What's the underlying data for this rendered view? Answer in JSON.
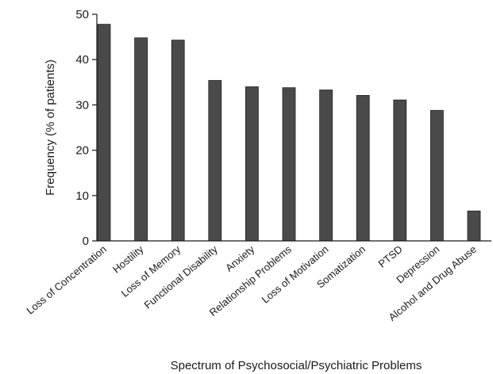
{
  "chart_data": {
    "type": "bar",
    "categories": [
      "Loss of Concentration",
      "Hostility",
      "Loss of Memory",
      "Functional Disability",
      "Anxiety",
      "Relationship Problems",
      "Loss of Motivation",
      "Somatization",
      "PTSD",
      "Depression",
      "Alcohol and Drug Abuse"
    ],
    "values": [
      47.8,
      44.8,
      44.3,
      35.4,
      34.0,
      33.8,
      33.3,
      32.1,
      31.1,
      28.8,
      6.6
    ],
    "xlabel": "Spectrum of Psychosocial/Psychiatric Problems",
    "ylabel": "Frequency (% of patients)",
    "ylim": [
      0,
      50
    ],
    "yticks": [
      0,
      10,
      20,
      30,
      40,
      50
    ],
    "grid": false,
    "bar_color": "#4a4a4a"
  }
}
